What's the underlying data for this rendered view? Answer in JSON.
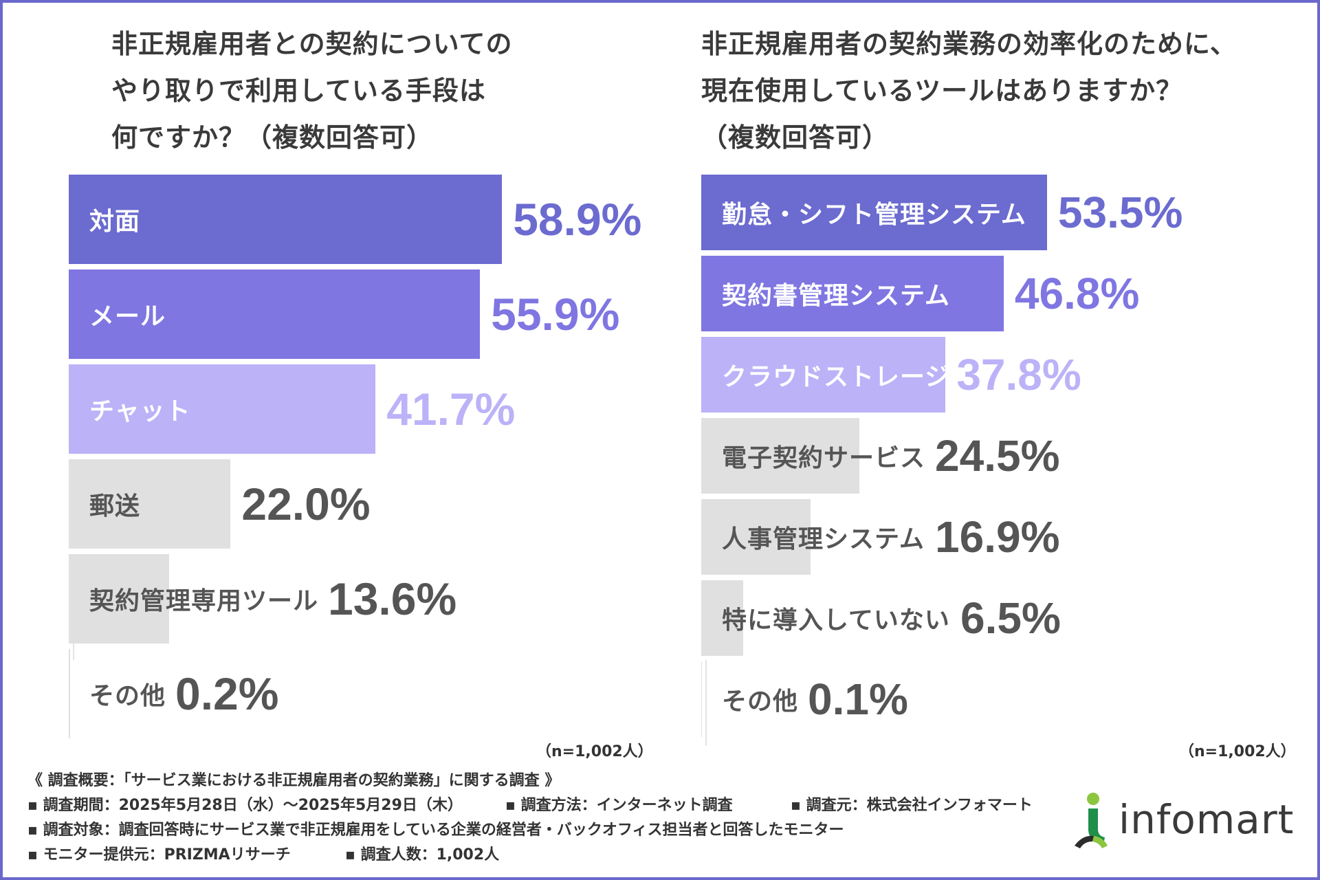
{
  "colors": {
    "frame": "#6b68cc",
    "bar_dark": "#6b6bd0",
    "bar_mid": "#7f76e2",
    "bar_light": "#bbb2f8",
    "bar_gray": "#e0e0e0",
    "label_white": "#ffffff",
    "label_gray": "#555555"
  },
  "chart_data": [
    {
      "type": "bar",
      "orientation": "horizontal",
      "title": "非正規雇用者との契約についてのやり取りで利用している手段は何ですか？（複数回答可）",
      "title_lines": [
        "非正規雇用者との契約についての",
        "やり取りで利用している手段は",
        "何ですか？（複数回答可）"
      ],
      "categories": [
        "対面",
        "メール",
        "チャット",
        "郵送",
        "契約管理専用ツール",
        "その他"
      ],
      "values": [
        58.9,
        55.9,
        41.7,
        22.0,
        13.6,
        0.2
      ],
      "value_labels": [
        "58.9%",
        "55.9%",
        "41.7%",
        "22.0%",
        "13.6%",
        "0.2%"
      ],
      "value_unit": "%",
      "xlim": [
        0,
        100
      ],
      "note": "（n=1,002人）"
    },
    {
      "type": "bar",
      "orientation": "horizontal",
      "title": "非正規雇用者の契約業務の効率化のために、現在使用しているツールはありますか？（複数回答可）",
      "title_lines": [
        "非正規雇用者の契約業務の効率化のために、",
        "現在使用しているツールはありますか？",
        "（複数回答可）"
      ],
      "categories": [
        "勤怠・シフト管理システム",
        "契約書管理システム",
        "クラウドストレージ",
        "電子契約サービス",
        "人事管理システム",
        "特に導入していない",
        "その他"
      ],
      "values": [
        53.5,
        46.8,
        37.8,
        24.5,
        16.9,
        6.5,
        0.1
      ],
      "value_labels": [
        "53.5%",
        "46.8%",
        "37.8%",
        "24.5%",
        "16.9%",
        "6.5%",
        "0.1%"
      ],
      "value_unit": "%",
      "xlim": [
        0,
        100
      ],
      "note": "（n=1,002人）"
    }
  ],
  "footer": {
    "heading": "《 調査概要：「サービス業における非正規雇用者の契約業務」に関する調査 》",
    "period": "▪ 調査期間：2025年5月28日（水）～2025年5月29日（木）",
    "method": "▪ 調査方法：インターネット調査",
    "source": "▪ 調査元：株式会社インフォマート",
    "target": "▪ 調査対象：調査回答時にサービス業で非正規雇用をしている企業の経営者・バックオフィス担当者と回答したモニター",
    "provider": "▪ モニター提供元：PRIZMAリサーチ",
    "count": "▪ 調査人数：1,002人"
  },
  "logo": {
    "text": "infomart",
    "icon": "infomart-person-icon",
    "colors": {
      "head": "#8cc63f",
      "body": "#1f8f4a",
      "dark": "#2c2c2c"
    }
  }
}
